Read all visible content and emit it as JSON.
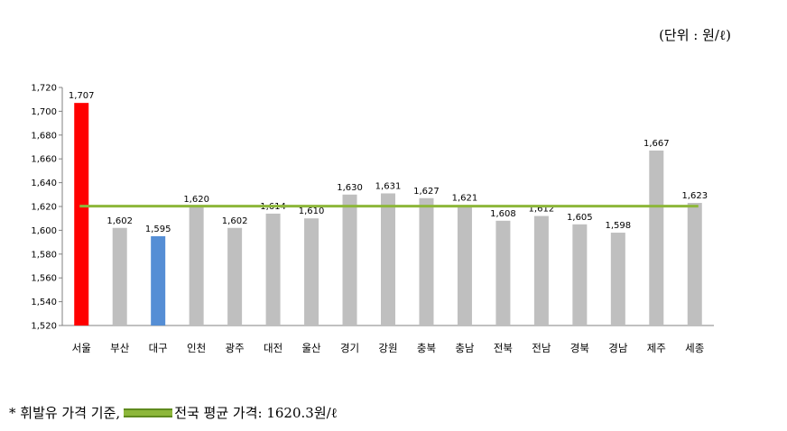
{
  "unit_label": "(단위 : 원/ℓ)",
  "footnote": {
    "left_text": "* 휘발유 가격 기준,",
    "right_text": "전국 평균 가격: 1620.3원/ℓ"
  },
  "colors": {
    "default_bar": "#bfbfbf",
    "highlight_max": "#ff0000",
    "highlight_min": "#558ed5",
    "average_line": "#8db73a"
  },
  "chart_data": {
    "type": "bar",
    "categories": [
      "서울",
      "부산",
      "대구",
      "인천",
      "광주",
      "대전",
      "울산",
      "경기",
      "강원",
      "충북",
      "충남",
      "전북",
      "전남",
      "경북",
      "경남",
      "제주",
      "세종"
    ],
    "values": [
      1707,
      1602,
      1595,
      1620,
      1602,
      1614,
      1610,
      1630,
      1631,
      1627,
      1621,
      1608,
      1612,
      1605,
      1598,
      1667,
      1623
    ],
    "value_labels": [
      "1,707",
      "1,602",
      "1,595",
      "1,620",
      "1,602",
      "1,614",
      "1,610",
      "1,630",
      "1,631",
      "1,627",
      "1,621",
      "1,608",
      "1,612",
      "1,605",
      "1,598",
      "1,667",
      "1,623"
    ],
    "bar_colors": [
      "#ff0000",
      "#bfbfbf",
      "#558ed5",
      "#bfbfbf",
      "#bfbfbf",
      "#bfbfbf",
      "#bfbfbf",
      "#bfbfbf",
      "#bfbfbf",
      "#bfbfbf",
      "#bfbfbf",
      "#bfbfbf",
      "#bfbfbf",
      "#bfbfbf",
      "#bfbfbf",
      "#bfbfbf",
      "#bfbfbf"
    ],
    "reference_line": 1620.3,
    "ylim": [
      1520,
      1720
    ],
    "yticks": [
      1520,
      1540,
      1560,
      1580,
      1600,
      1620,
      1640,
      1660,
      1680,
      1700,
      1720
    ],
    "ytick_labels": [
      "1,520",
      "1,540",
      "1,560",
      "1,580",
      "1,600",
      "1,620",
      "1,640",
      "1,660",
      "1,680",
      "1,700",
      "1,720"
    ],
    "grid": false,
    "title": "",
    "xlabel": "",
    "ylabel": ""
  }
}
